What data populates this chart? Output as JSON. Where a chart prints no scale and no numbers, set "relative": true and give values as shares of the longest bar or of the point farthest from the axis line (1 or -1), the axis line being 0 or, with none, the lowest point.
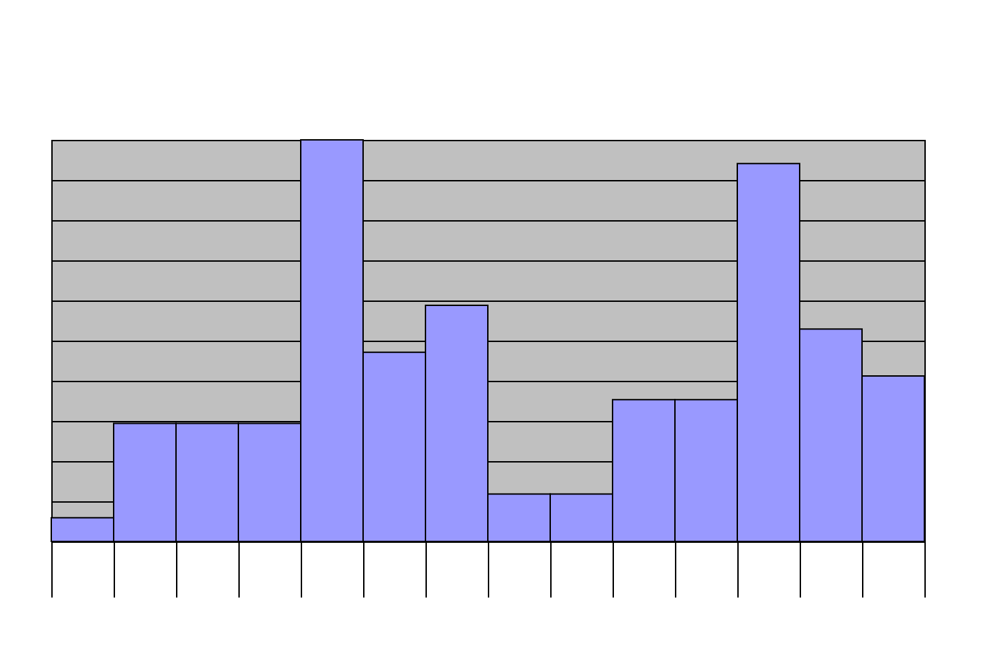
{
  "chart_data": {
    "type": "bar",
    "relative": true,
    "categories": [
      null,
      null,
      null,
      null,
      null,
      null,
      null,
      null,
      null,
      null,
      null,
      null,
      null,
      null
    ],
    "series": [
      {
        "color": "#9999ff",
        "values": [
          0.059,
          0.294,
          0.294,
          0.294,
          1,
          0.471,
          0.588,
          0.118,
          0.118,
          0.353,
          0.353,
          0.941,
          0.529,
          0.412
        ]
      }
    ],
    "grid": "y"
  }
}
